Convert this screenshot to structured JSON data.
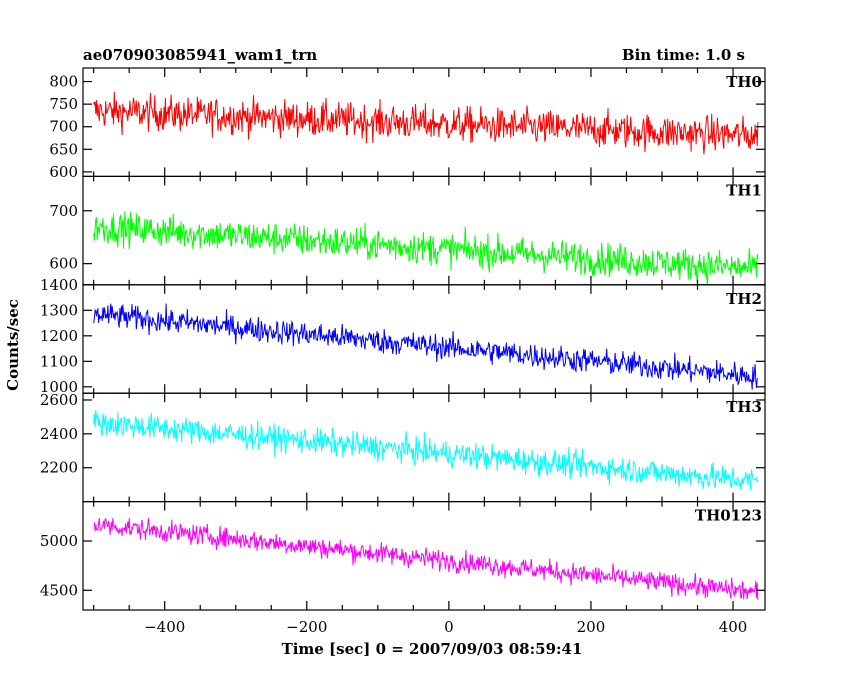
{
  "chart_data": {
    "type": "line",
    "title": "ae070903085941_wam1_trn",
    "subtitle": "Bin time: 1.0 s",
    "xlabel": "Time [sec] 0 = 2007/09/03 08:59:41",
    "ylabel": "Counts/sec",
    "xlim": [
      -515,
      445
    ],
    "x_range": [
      -500,
      435
    ],
    "xticks": [
      -400,
      -200,
      0,
      200,
      400
    ],
    "xtick_labels": [
      "−400",
      "−200",
      "0",
      "200",
      "400"
    ],
    "panels": [
      {
        "name": "TH0",
        "color": "#ff0000",
        "ylim": [
          590,
          830
        ],
        "yticks": [
          600,
          650,
          700,
          750,
          800
        ],
        "start": 735,
        "end": 680,
        "noise": 28
      },
      {
        "name": "TH1",
        "color": "#00ff00",
        "ylim": [
          560,
          765
        ],
        "yticks": [
          600,
          700
        ],
        "start": 670,
        "end": 590,
        "noise": 22
      },
      {
        "name": "TH2",
        "color": "#0000ff",
        "ylim": [
          975,
          1400
        ],
        "yticks": [
          1000,
          1100,
          1200,
          1300,
          1400
        ],
        "start": 1285,
        "end": 1040,
        "noise": 35
      },
      {
        "name": "TH3",
        "color": "#00ffff",
        "ylim": [
          2000,
          2640
        ],
        "yticks": [
          2200,
          2400,
          2600
        ],
        "start": 2470,
        "end": 2120,
        "noise": 55
      },
      {
        "name": "TH0123",
        "color": "#ff00ff",
        "ylim": [
          4300,
          5400
        ],
        "yticks": [
          4500,
          5000
        ],
        "start": 5170,
        "end": 4480,
        "noise": 75
      }
    ]
  }
}
